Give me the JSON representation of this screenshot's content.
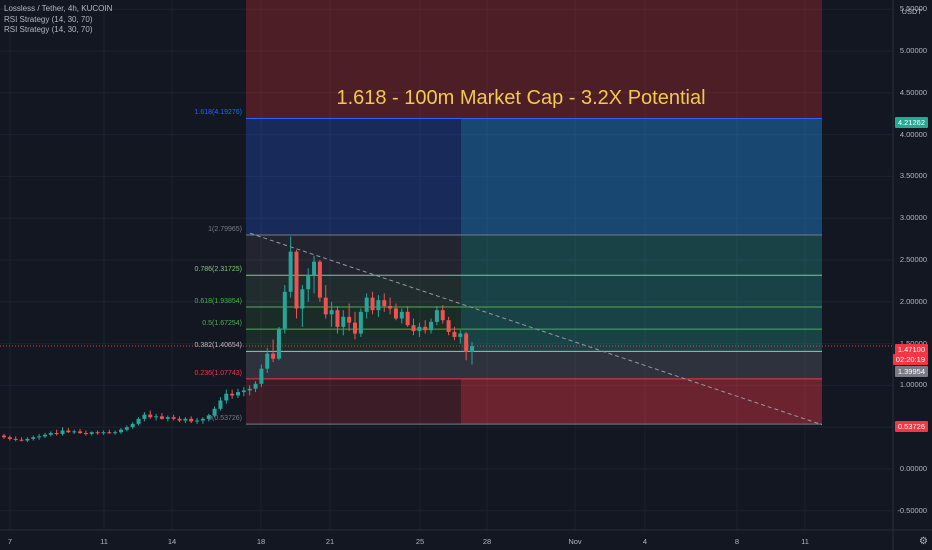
{
  "legend": {
    "symbol": "Lossless / Tether, 4h, KUCOIN",
    "study1": "RSI Strategy (14, 30, 70)",
    "study2": "RSI Strategy (14, 30, 70)"
  },
  "annotation": "1.618 - 100m Market Cap - 3.2X Potential",
  "currency": "USDT",
  "price_axis": [
    "5.50000",
    "5.00000",
    "4.50000",
    "4.00000",
    "3.50000",
    "3.00000",
    "2.50000",
    "2.00000",
    "1.50000",
    "1.00000",
    "0.50000",
    "0.00000",
    "-0.50000"
  ],
  "time_axis": [
    "7",
    "11",
    "14",
    "18",
    "21",
    "25",
    "28",
    "Nov",
    "4",
    "8",
    "11"
  ],
  "fib_levels": [
    {
      "label": "1.618(4.19276)",
      "value": 4.19276,
      "color": "#2962ff"
    },
    {
      "label": "1(2.79965)",
      "value": 2.79965,
      "color": "#787b86"
    },
    {
      "label": "0.786(2.31725)",
      "value": 2.31725,
      "color": "#81c784"
    },
    {
      "label": "0.618(1.93854)",
      "value": 1.93854,
      "color": "#4caf50"
    },
    {
      "label": "0.5(1.67254)",
      "value": 1.67254,
      "color": "#4caf50"
    },
    {
      "label": "0.382(1.40654)",
      "value": 1.40654,
      "color": "#b2b5be"
    },
    {
      "label": "0.236(1.07743)",
      "value": 1.07743,
      "color": "#f23645"
    },
    {
      "label": "0(0.53726)",
      "value": 0.53726,
      "color": "#787b86"
    }
  ],
  "badges": {
    "target": {
      "text": "4.21262",
      "color": "#22ab94"
    },
    "last_price": {
      "text": "1.47100",
      "color": "#f23645"
    },
    "countdown": {
      "text": "02:20:19",
      "color": "#f23645"
    },
    "level": {
      "text": "1.39954",
      "color": "#787b86"
    },
    "stop": {
      "text": "0.53726",
      "color": "#f23645"
    }
  },
  "colors": {
    "bull": "#26a69a",
    "bear": "#ef5350",
    "background": "#131722"
  },
  "chart_data": {
    "type": "candlestick",
    "ylim": [
      -0.6,
      5.55
    ],
    "last_price": 1.471,
    "candles": [
      [
        0.4,
        0.42,
        0.36,
        0.38
      ],
      [
        0.38,
        0.4,
        0.34,
        0.36
      ],
      [
        0.36,
        0.39,
        0.33,
        0.35
      ],
      [
        0.35,
        0.38,
        0.33,
        0.34
      ],
      [
        0.34,
        0.38,
        0.32,
        0.36
      ],
      [
        0.36,
        0.4,
        0.34,
        0.38
      ],
      [
        0.38,
        0.42,
        0.35,
        0.39
      ],
      [
        0.39,
        0.43,
        0.37,
        0.41
      ],
      [
        0.41,
        0.45,
        0.39,
        0.43
      ],
      [
        0.43,
        0.47,
        0.4,
        0.42
      ],
      [
        0.42,
        0.5,
        0.4,
        0.46
      ],
      [
        0.46,
        0.49,
        0.43,
        0.44
      ],
      [
        0.44,
        0.47,
        0.42,
        0.45
      ],
      [
        0.45,
        0.48,
        0.42,
        0.43
      ],
      [
        0.43,
        0.46,
        0.4,
        0.42
      ],
      [
        0.42,
        0.45,
        0.4,
        0.44
      ],
      [
        0.44,
        0.46,
        0.41,
        0.43
      ],
      [
        0.43,
        0.46,
        0.41,
        0.44
      ],
      [
        0.44,
        0.47,
        0.42,
        0.43
      ],
      [
        0.43,
        0.46,
        0.41,
        0.44
      ],
      [
        0.44,
        0.49,
        0.42,
        0.47
      ],
      [
        0.47,
        0.52,
        0.45,
        0.5
      ],
      [
        0.5,
        0.56,
        0.48,
        0.54
      ],
      [
        0.54,
        0.62,
        0.52,
        0.6
      ],
      [
        0.6,
        0.68,
        0.57,
        0.65
      ],
      [
        0.65,
        0.7,
        0.6,
        0.62
      ],
      [
        0.62,
        0.66,
        0.58,
        0.63
      ],
      [
        0.63,
        0.67,
        0.59,
        0.6
      ],
      [
        0.6,
        0.64,
        0.57,
        0.62
      ],
      [
        0.62,
        0.65,
        0.58,
        0.6
      ],
      [
        0.6,
        0.63,
        0.56,
        0.58
      ],
      [
        0.58,
        0.62,
        0.55,
        0.6
      ],
      [
        0.6,
        0.63,
        0.55,
        0.57
      ],
      [
        0.57,
        0.61,
        0.54,
        0.58
      ],
      [
        0.58,
        0.62,
        0.54,
        0.6
      ],
      [
        0.6,
        0.66,
        0.57,
        0.64
      ],
      [
        0.64,
        0.75,
        0.62,
        0.72
      ],
      [
        0.72,
        0.86,
        0.7,
        0.82
      ],
      [
        0.82,
        0.95,
        0.78,
        0.9
      ],
      [
        0.9,
        0.95,
        0.84,
        0.88
      ],
      [
        0.88,
        0.96,
        0.85,
        0.92
      ],
      [
        0.92,
        0.98,
        0.87,
        0.94
      ],
      [
        0.94,
        1.0,
        0.88,
        0.96
      ],
      [
        0.96,
        1.05,
        0.92,
        1.02
      ],
      [
        1.02,
        1.25,
        0.98,
        1.2
      ],
      [
        1.2,
        1.45,
        1.15,
        1.38
      ],
      [
        1.38,
        1.55,
        1.28,
        1.32
      ],
      [
        1.32,
        1.7,
        1.3,
        1.68
      ],
      [
        1.68,
        2.2,
        1.62,
        2.12
      ],
      [
        2.12,
        2.78,
        2.05,
        2.6
      ],
      [
        2.6,
        2.62,
        1.8,
        1.92
      ],
      [
        1.92,
        2.2,
        1.7,
        2.15
      ],
      [
        2.15,
        2.4,
        2.0,
        2.32
      ],
      [
        2.32,
        2.55,
        2.1,
        2.48
      ],
      [
        2.48,
        2.5,
        2.0,
        2.05
      ],
      [
        2.05,
        2.2,
        1.8,
        1.85
      ],
      [
        1.85,
        2.0,
        1.7,
        1.9
      ],
      [
        1.9,
        1.95,
        1.62,
        1.7
      ],
      [
        1.7,
        1.9,
        1.6,
        1.82
      ],
      [
        1.82,
        1.98,
        1.65,
        1.75
      ],
      [
        1.75,
        1.88,
        1.55,
        1.62
      ],
      [
        1.62,
        1.92,
        1.58,
        1.88
      ],
      [
        1.88,
        2.1,
        1.8,
        2.05
      ],
      [
        2.05,
        2.12,
        1.85,
        1.9
      ],
      [
        1.9,
        2.08,
        1.82,
        2.02
      ],
      [
        2.02,
        2.1,
        1.88,
        1.95
      ],
      [
        1.95,
        2.05,
        1.85,
        1.92
      ],
      [
        1.92,
        1.98,
        1.78,
        1.8
      ],
      [
        1.8,
        1.92,
        1.74,
        1.88
      ],
      [
        1.88,
        1.95,
        1.7,
        1.72
      ],
      [
        1.72,
        1.8,
        1.6,
        1.65
      ],
      [
        1.65,
        1.75,
        1.58,
        1.7
      ],
      [
        1.7,
        1.78,
        1.62,
        1.66
      ],
      [
        1.66,
        1.8,
        1.62,
        1.76
      ],
      [
        1.76,
        1.95,
        1.72,
        1.9
      ],
      [
        1.9,
        1.96,
        1.74,
        1.78
      ],
      [
        1.78,
        1.82,
        1.6,
        1.64
      ],
      [
        1.64,
        1.7,
        1.54,
        1.58
      ],
      [
        1.58,
        1.66,
        1.5,
        1.62
      ],
      [
        1.62,
        1.64,
        1.3,
        1.4
      ],
      [
        1.4,
        1.52,
        1.25,
        1.47
      ]
    ]
  }
}
